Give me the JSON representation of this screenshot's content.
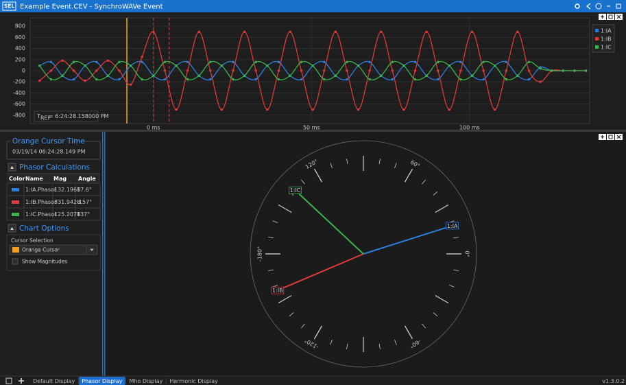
{
  "window": {
    "logo": "SEL",
    "title": "Example Event.CEV - SynchroWAVe Event"
  },
  "chart_data": [
    {
      "type": "line",
      "x": [
        -36,
        -32.4,
        -28.8,
        -25.2,
        -21.6,
        -18,
        -14.4,
        -10.8,
        -7.2,
        -3.6,
        0,
        3.6,
        7.2,
        10.8,
        14.4,
        18,
        21.6,
        25.2,
        28.8,
        32.4,
        36,
        39.6,
        43.2,
        46.8,
        50.4,
        54,
        57.6,
        61.2,
        64.8,
        68.4,
        72,
        75.6,
        79.2,
        82.8,
        86.4,
        90,
        93.6,
        97.2,
        100.8,
        104.4,
        108,
        111.6,
        115.2,
        118.8,
        122.4,
        126,
        129.6,
        133.2,
        136.8
      ],
      "series": [
        {
          "name": "1:IA",
          "color": "#2f7fe0",
          "values": [
            90,
            156,
            -90,
            -156,
            90,
            156,
            -90,
            -156,
            90,
            156,
            -90,
            -156,
            90,
            156,
            -90,
            -156,
            90,
            156,
            -90,
            -156,
            90,
            156,
            -90,
            -156,
            90,
            156,
            -90,
            -156,
            90,
            156,
            -90,
            -156,
            90,
            156,
            -90,
            -156,
            90,
            156,
            -90,
            -156,
            90,
            156,
            -90,
            -156,
            60,
            0,
            0,
            0,
            0
          ]
        },
        {
          "name": "1:IB",
          "color": "#e03a3a",
          "values": [
            -180,
            0,
            180,
            0,
            -180,
            0,
            180,
            0,
            -250,
            250,
            700,
            0,
            -700,
            0,
            700,
            0,
            -700,
            0,
            700,
            0,
            -700,
            0,
            700,
            0,
            -700,
            0,
            700,
            0,
            -700,
            0,
            700,
            0,
            -700,
            0,
            700,
            0,
            -700,
            0,
            700,
            0,
            -700,
            0,
            700,
            0,
            -200,
            0,
            0,
            0,
            0
          ]
        },
        {
          "name": "1:IC",
          "color": "#3cb44b",
          "values": [
            90,
            -156,
            -90,
            156,
            90,
            -156,
            -90,
            156,
            90,
            -156,
            -90,
            156,
            90,
            -156,
            -90,
            156,
            90,
            -156,
            -90,
            156,
            90,
            -156,
            -90,
            156,
            90,
            -156,
            -90,
            156,
            90,
            -156,
            -90,
            156,
            90,
            -156,
            -90,
            156,
            90,
            -156,
            -90,
            156,
            90,
            -156,
            -90,
            156,
            40,
            0,
            0,
            0,
            0
          ]
        }
      ],
      "xlim": [
        -39,
        138
      ],
      "ylim": [
        -950,
        950
      ],
      "xticks": [
        {
          "value": 0,
          "label": "0 ms"
        },
        {
          "value": 50,
          "label": "50 ms"
        },
        {
          "value": 100,
          "label": "100 ms"
        }
      ],
      "yticks": [
        800,
        600,
        400,
        200,
        0,
        -200,
        -400,
        -600,
        -800
      ],
      "grid": true,
      "legend": "upper right",
      "cursors": [
        {
          "color": "#f0a020",
          "x": -8.4,
          "style": "solid"
        },
        {
          "color": "#e03a3a",
          "x": 0,
          "style": "dashed"
        },
        {
          "color": "#e03a3a",
          "x": 5,
          "style": "dashed"
        }
      ],
      "reference_time": {
        "symbol": "T",
        "subscript": "REF",
        "text": "= 6:24:28.158000 PM"
      }
    },
    {
      "type": "polar",
      "angle_ticks": [
        {
          "value": 0,
          "label": "0°"
        },
        {
          "value": 60,
          "label": "60°"
        },
        {
          "value": 120,
          "label": "120°"
        },
        {
          "value": -180,
          "label": "-180°"
        },
        {
          "value": -120,
          "label": "-120°"
        },
        {
          "value": -60,
          "label": "-60°"
        }
      ],
      "series": [
        {
          "name": "1:IA",
          "color": "#2f7fe0",
          "values": [
            17.6
          ]
        },
        {
          "name": "1:IB",
          "color": "#e03a3a",
          "values": [
            -157
          ]
        },
        {
          "name": "1:IC",
          "color": "#3cb44b",
          "values": [
            137
          ]
        }
      ]
    }
  ],
  "orange_cursor_time": {
    "title": "Orange Cursor Time",
    "value": "03/19/14 06:24:28.149 PM"
  },
  "phasor_calculations": {
    "title": "Phasor Calculations",
    "columns": [
      "Color",
      "Name",
      "Mag",
      "Angle"
    ],
    "rows": [
      {
        "color": "#2f7fe0",
        "name": "1:IA.Phasor",
        "mag": "132.1968",
        "angle": "17.6°"
      },
      {
        "color": "#e03a3a",
        "name": "1:IB.Phasor",
        "mag": "331.9428",
        "angle": "-157°"
      },
      {
        "color": "#3cb44b",
        "name": "1:IC.Phasor",
        "mag": "125.2078",
        "angle": "137°"
      }
    ]
  },
  "chart_options": {
    "title": "Chart Options",
    "cursor_selection_label": "Cursor Selection",
    "cursor": "Orange Cursor",
    "cursor_color": "#f0a020",
    "show_magnitudes_label": "Show Magnitudes",
    "show_magnitudes": false
  },
  "tabs": {
    "items": [
      "Default Display",
      "Phasor Display",
      "Mho Display",
      "Harmonic Display"
    ],
    "active": 1
  },
  "version": "v1.3.0.2"
}
